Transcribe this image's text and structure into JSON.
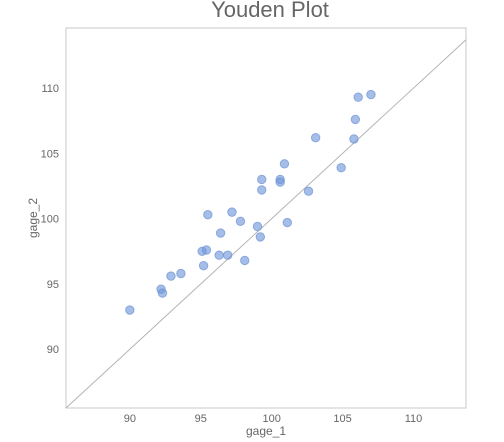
{
  "chart_data": {
    "type": "scatter",
    "title": "Youden Plot",
    "xlabel": "gage_1",
    "ylabel": "gage_2",
    "xlim": [
      85.5,
      113.7
    ],
    "ylim": [
      85.5,
      114.6
    ],
    "xticks": [
      90,
      95,
      100,
      105,
      110
    ],
    "yticks": [
      90,
      95,
      100,
      105,
      110
    ],
    "grid": false,
    "reference_line": "y = x",
    "point_color": "#7096d8",
    "line_color": "#b4b4b4",
    "series": [
      {
        "points": [
          [
            90.0,
            93.0
          ],
          [
            92.2,
            94.6
          ],
          [
            92.3,
            94.3
          ],
          [
            92.9,
            95.6
          ],
          [
            93.6,
            95.8
          ],
          [
            95.1,
            97.5
          ],
          [
            95.4,
            97.6
          ],
          [
            95.2,
            96.4
          ],
          [
            95.5,
            100.3
          ],
          [
            96.3,
            97.2
          ],
          [
            96.4,
            98.9
          ],
          [
            96.9,
            97.2
          ],
          [
            97.2,
            100.5
          ],
          [
            97.8,
            99.8
          ],
          [
            98.1,
            96.8
          ],
          [
            99.0,
            99.4
          ],
          [
            99.2,
            98.6
          ],
          [
            99.3,
            103.0
          ],
          [
            99.3,
            102.2
          ],
          [
            100.6,
            102.8
          ],
          [
            100.6,
            103.0
          ],
          [
            100.9,
            104.2
          ],
          [
            101.1,
            99.7
          ],
          [
            102.6,
            102.1
          ],
          [
            103.1,
            106.2
          ],
          [
            104.9,
            103.9
          ],
          [
            105.8,
            106.1
          ],
          [
            105.9,
            107.6
          ],
          [
            106.1,
            109.3
          ],
          [
            107.0,
            109.5
          ]
        ]
      }
    ]
  }
}
